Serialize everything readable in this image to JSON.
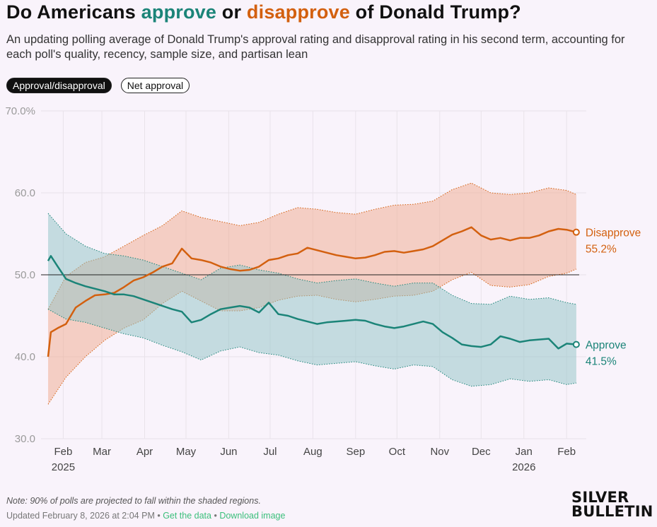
{
  "header": {
    "title_pre": "Do Americans ",
    "title_approve": "approve",
    "title_mid": " or ",
    "title_disapprove": "disapprove",
    "title_post": " of Donald Trump?",
    "subtitle": "An updating polling average of Donald Trump's approval rating and disapproval rating in his second term, accounting for each poll's quality, recency, sample size, and partisan lean"
  },
  "toggles": {
    "approval_disapproval": "Approval/disapproval",
    "net_approval": "Net approval"
  },
  "colors": {
    "approve": "#1b8478",
    "disapprove": "#d3600f",
    "approve_band": "#8fc3c6",
    "disapprove_band": "#f0a98e",
    "background": "#f9f3fb"
  },
  "chart_data": {
    "type": "line",
    "x_unit": "date",
    "ylim": [
      30,
      70
    ],
    "y_ticks": [
      {
        "value": 70,
        "label": "70.0%"
      },
      {
        "value": 60,
        "label": "60.0"
      },
      {
        "value": 50,
        "label": "50.0"
      },
      {
        "value": 40,
        "label": "40.0"
      },
      {
        "value": 30,
        "label": "30.0"
      }
    ],
    "x_ticks": [
      {
        "date": "2025-02-01",
        "label": "Feb",
        "year": "2025"
      },
      {
        "date": "2025-03-01",
        "label": "Mar",
        "year": ""
      },
      {
        "date": "2025-04-01",
        "label": "Apr",
        "year": ""
      },
      {
        "date": "2025-05-01",
        "label": "May",
        "year": ""
      },
      {
        "date": "2025-06-01",
        "label": "Jun",
        "year": ""
      },
      {
        "date": "2025-07-01",
        "label": "Jul",
        "year": ""
      },
      {
        "date": "2025-08-01",
        "label": "Aug",
        "year": ""
      },
      {
        "date": "2025-09-01",
        "label": "Sep",
        "year": ""
      },
      {
        "date": "2025-10-01",
        "label": "Oct",
        "year": ""
      },
      {
        "date": "2025-11-01",
        "label": "Nov",
        "year": ""
      },
      {
        "date": "2025-12-01",
        "label": "Dec",
        "year": ""
      },
      {
        "date": "2026-01-01",
        "label": "Jan",
        "year": "2026"
      },
      {
        "date": "2026-02-01",
        "label": "Feb",
        "year": ""
      }
    ],
    "reference_line": 50,
    "grid": true,
    "series": [
      {
        "name": "Disapprove",
        "end_label": "55.2%",
        "points": [
          [
            "2025-01-21",
            40.0
          ],
          [
            "2025-01-23",
            43.0
          ],
          [
            "2025-01-28",
            43.5
          ],
          [
            "2025-02-03",
            44.0
          ],
          [
            "2025-02-10",
            46.0
          ],
          [
            "2025-02-17",
            46.8
          ],
          [
            "2025-02-24",
            47.5
          ],
          [
            "2025-03-03",
            47.6
          ],
          [
            "2025-03-10",
            47.8
          ],
          [
            "2025-03-17",
            48.5
          ],
          [
            "2025-03-24",
            49.3
          ],
          [
            "2025-03-31",
            49.7
          ],
          [
            "2025-04-07",
            50.3
          ],
          [
            "2025-04-14",
            51.0
          ],
          [
            "2025-04-21",
            51.4
          ],
          [
            "2025-04-28",
            53.2
          ],
          [
            "2025-05-05",
            52.0
          ],
          [
            "2025-05-12",
            51.8
          ],
          [
            "2025-05-19",
            51.5
          ],
          [
            "2025-05-26",
            51.0
          ],
          [
            "2025-06-02",
            50.7
          ],
          [
            "2025-06-09",
            50.5
          ],
          [
            "2025-06-16",
            50.6
          ],
          [
            "2025-06-23",
            51.0
          ],
          [
            "2025-06-30",
            51.8
          ],
          [
            "2025-07-07",
            52.0
          ],
          [
            "2025-07-14",
            52.4
          ],
          [
            "2025-07-21",
            52.6
          ],
          [
            "2025-07-28",
            53.3
          ],
          [
            "2025-08-04",
            53.0
          ],
          [
            "2025-08-11",
            52.7
          ],
          [
            "2025-08-18",
            52.4
          ],
          [
            "2025-08-25",
            52.2
          ],
          [
            "2025-09-01",
            52.0
          ],
          [
            "2025-09-08",
            52.1
          ],
          [
            "2025-09-15",
            52.4
          ],
          [
            "2025-09-22",
            52.8
          ],
          [
            "2025-09-29",
            52.9
          ],
          [
            "2025-10-06",
            52.7
          ],
          [
            "2025-10-13",
            52.9
          ],
          [
            "2025-10-20",
            53.1
          ],
          [
            "2025-10-27",
            53.5
          ],
          [
            "2025-11-03",
            54.2
          ],
          [
            "2025-11-10",
            54.9
          ],
          [
            "2025-11-17",
            55.3
          ],
          [
            "2025-11-24",
            55.8
          ],
          [
            "2025-12-01",
            54.8
          ],
          [
            "2025-12-08",
            54.3
          ],
          [
            "2025-12-15",
            54.5
          ],
          [
            "2025-12-22",
            54.2
          ],
          [
            "2025-12-29",
            54.5
          ],
          [
            "2026-01-05",
            54.5
          ],
          [
            "2026-01-12",
            54.8
          ],
          [
            "2026-01-19",
            55.3
          ],
          [
            "2026-01-26",
            55.6
          ],
          [
            "2026-02-01",
            55.5
          ],
          [
            "2026-02-08",
            55.2
          ]
        ],
        "band": [
          [
            "2025-01-21",
            34.2,
            45.8
          ],
          [
            "2025-02-03",
            37.5,
            49.8
          ],
          [
            "2025-02-17",
            40.0,
            51.5
          ],
          [
            "2025-03-03",
            42.0,
            52.2
          ],
          [
            "2025-03-17",
            43.5,
            53.5
          ],
          [
            "2025-03-31",
            44.5,
            54.8
          ],
          [
            "2025-04-14",
            46.5,
            56.0
          ],
          [
            "2025-04-28",
            48.0,
            57.8
          ],
          [
            "2025-05-12",
            46.8,
            57.0
          ],
          [
            "2025-05-26",
            45.6,
            56.5
          ],
          [
            "2025-06-09",
            45.6,
            56.0
          ],
          [
            "2025-06-23",
            46.0,
            56.4
          ],
          [
            "2025-07-07",
            46.9,
            57.4
          ],
          [
            "2025-07-21",
            47.4,
            58.2
          ],
          [
            "2025-08-04",
            47.5,
            58.0
          ],
          [
            "2025-08-18",
            47.0,
            57.6
          ],
          [
            "2025-09-01",
            46.7,
            57.4
          ],
          [
            "2025-09-15",
            47.0,
            58.0
          ],
          [
            "2025-09-29",
            47.4,
            58.5
          ],
          [
            "2025-10-13",
            47.5,
            58.6
          ],
          [
            "2025-10-27",
            48.0,
            59.0
          ],
          [
            "2025-11-10",
            49.4,
            60.4
          ],
          [
            "2025-11-24",
            50.3,
            61.2
          ],
          [
            "2025-12-08",
            48.7,
            60.0
          ],
          [
            "2025-12-22",
            48.5,
            59.8
          ],
          [
            "2026-01-05",
            48.8,
            60.0
          ],
          [
            "2026-01-19",
            49.8,
            60.6
          ],
          [
            "2026-02-01",
            50.2,
            60.3
          ],
          [
            "2026-02-08",
            50.7,
            59.8
          ]
        ]
      },
      {
        "name": "Approve",
        "end_label": "41.5%",
        "points": [
          [
            "2025-01-21",
            51.7
          ],
          [
            "2025-01-23",
            52.3
          ],
          [
            "2025-01-28",
            51.0
          ],
          [
            "2025-02-03",
            49.5
          ],
          [
            "2025-02-10",
            49.0
          ],
          [
            "2025-02-17",
            48.6
          ],
          [
            "2025-02-24",
            48.3
          ],
          [
            "2025-03-03",
            48.0
          ],
          [
            "2025-03-10",
            47.6
          ],
          [
            "2025-03-17",
            47.6
          ],
          [
            "2025-03-24",
            47.4
          ],
          [
            "2025-03-31",
            47.0
          ],
          [
            "2025-04-07",
            46.6
          ],
          [
            "2025-04-14",
            46.2
          ],
          [
            "2025-04-21",
            45.8
          ],
          [
            "2025-04-28",
            45.5
          ],
          [
            "2025-05-05",
            44.2
          ],
          [
            "2025-05-12",
            44.5
          ],
          [
            "2025-05-19",
            45.2
          ],
          [
            "2025-05-26",
            45.8
          ],
          [
            "2025-06-02",
            46.0
          ],
          [
            "2025-06-09",
            46.2
          ],
          [
            "2025-06-16",
            46.0
          ],
          [
            "2025-06-23",
            45.4
          ],
          [
            "2025-06-30",
            46.6
          ],
          [
            "2025-07-07",
            45.2
          ],
          [
            "2025-07-14",
            45.0
          ],
          [
            "2025-07-21",
            44.6
          ],
          [
            "2025-07-28",
            44.3
          ],
          [
            "2025-08-04",
            44.0
          ],
          [
            "2025-08-11",
            44.2
          ],
          [
            "2025-08-18",
            44.3
          ],
          [
            "2025-08-25",
            44.4
          ],
          [
            "2025-09-01",
            44.5
          ],
          [
            "2025-09-08",
            44.4
          ],
          [
            "2025-09-15",
            44.0
          ],
          [
            "2025-09-22",
            43.7
          ],
          [
            "2025-09-29",
            43.5
          ],
          [
            "2025-10-06",
            43.7
          ],
          [
            "2025-10-13",
            44.0
          ],
          [
            "2025-10-20",
            44.3
          ],
          [
            "2025-10-27",
            44.0
          ],
          [
            "2025-11-03",
            43.0
          ],
          [
            "2025-11-10",
            42.3
          ],
          [
            "2025-11-17",
            41.5
          ],
          [
            "2025-11-24",
            41.3
          ],
          [
            "2025-12-01",
            41.2
          ],
          [
            "2025-12-08",
            41.5
          ],
          [
            "2025-12-15",
            42.5
          ],
          [
            "2025-12-22",
            42.2
          ],
          [
            "2025-12-29",
            41.8
          ],
          [
            "2026-01-05",
            42.0
          ],
          [
            "2026-01-12",
            42.1
          ],
          [
            "2026-01-19",
            42.2
          ],
          [
            "2026-01-26",
            41.0
          ],
          [
            "2026-02-01",
            41.6
          ],
          [
            "2026-02-08",
            41.5
          ]
        ],
        "band": [
          [
            "2025-01-21",
            45.8,
            57.5
          ],
          [
            "2025-02-03",
            44.6,
            55.0
          ],
          [
            "2025-02-17",
            44.2,
            53.5
          ],
          [
            "2025-03-03",
            43.5,
            52.6
          ],
          [
            "2025-03-17",
            42.8,
            52.3
          ],
          [
            "2025-03-31",
            42.3,
            51.8
          ],
          [
            "2025-04-14",
            41.4,
            51.0
          ],
          [
            "2025-04-28",
            40.6,
            50.2
          ],
          [
            "2025-05-12",
            39.6,
            49.4
          ],
          [
            "2025-05-26",
            40.7,
            50.8
          ],
          [
            "2025-06-09",
            41.2,
            51.2
          ],
          [
            "2025-06-23",
            40.5,
            50.6
          ],
          [
            "2025-07-07",
            40.2,
            50.2
          ],
          [
            "2025-07-21",
            39.5,
            49.5
          ],
          [
            "2025-08-04",
            39.0,
            49.0
          ],
          [
            "2025-08-18",
            39.2,
            49.3
          ],
          [
            "2025-09-01",
            39.4,
            49.5
          ],
          [
            "2025-09-15",
            38.9,
            49.0
          ],
          [
            "2025-09-29",
            38.5,
            48.6
          ],
          [
            "2025-10-13",
            39.0,
            49.0
          ],
          [
            "2025-10-27",
            38.8,
            49.0
          ],
          [
            "2025-11-10",
            37.2,
            47.5
          ],
          [
            "2025-11-24",
            36.4,
            46.5
          ],
          [
            "2025-12-08",
            36.6,
            46.4
          ],
          [
            "2025-12-22",
            37.3,
            47.4
          ],
          [
            "2026-01-05",
            37.0,
            47.0
          ],
          [
            "2026-01-19",
            37.2,
            47.2
          ],
          [
            "2026-02-01",
            36.6,
            46.6
          ],
          [
            "2026-02-08",
            36.8,
            46.4
          ]
        ]
      }
    ]
  },
  "footer": {
    "note": "Note: 90% of polls are projected to fall within the shaded regions.",
    "updated": "Updated February 8, 2026 at 2:04 PM",
    "sep1": " • ",
    "get_data": "Get the data",
    "sep2": " • ",
    "download": "Download image",
    "logo_line1": "SILVER",
    "logo_line2": "BULLETIN"
  }
}
